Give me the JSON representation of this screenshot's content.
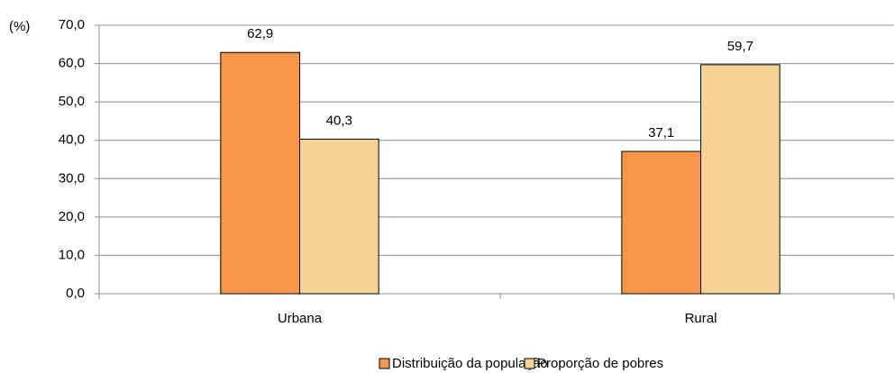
{
  "chart_data": {
    "type": "bar",
    "y_label": "(%)",
    "categories": [
      "Urbana",
      "Rural"
    ],
    "series": [
      {
        "name": "Distribuição da população",
        "color": "#f79646",
        "values": [
          62.9,
          37.1
        ],
        "value_labels": [
          "62,9",
          "37,1"
        ]
      },
      {
        "name": "Proporção de pobres",
        "color": "#f6d394",
        "values": [
          40.3,
          59.7
        ],
        "value_labels": [
          "40,3",
          "59,7"
        ]
      }
    ],
    "ylim": [
      0,
      70
    ],
    "yticks": [
      {
        "value": 0,
        "label": "0,0"
      },
      {
        "value": 10,
        "label": "10,0"
      },
      {
        "value": 20,
        "label": "20,0"
      },
      {
        "value": 30,
        "label": "30,0"
      },
      {
        "value": 40,
        "label": "40,0"
      },
      {
        "value": 50,
        "label": "50,0"
      },
      {
        "value": 60,
        "label": "60,0"
      },
      {
        "value": 70,
        "label": "70,0"
      }
    ],
    "grid": true,
    "legend": "bottom"
  }
}
